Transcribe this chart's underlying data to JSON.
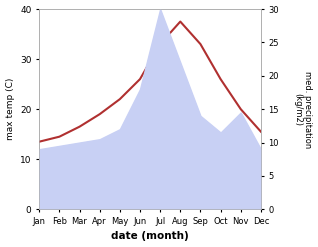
{
  "months": [
    "Jan",
    "Feb",
    "Mar",
    "Apr",
    "May",
    "Jun",
    "Jul",
    "Aug",
    "Sep",
    "Oct",
    "Nov",
    "Dec"
  ],
  "max_temp": [
    13.5,
    14.5,
    16.5,
    19.0,
    22.0,
    26.0,
    33.0,
    37.5,
    33.0,
    26.0,
    20.0,
    15.5
  ],
  "precipitation": [
    9.0,
    9.5,
    10.0,
    10.5,
    12.0,
    18.0,
    30.0,
    22.0,
    14.0,
    11.5,
    14.5,
    9.0
  ],
  "temp_color": "#b03030",
  "precip_fill_color": "#c8d0f4",
  "left_ylim": [
    0,
    40
  ],
  "right_ylim": [
    0,
    30
  ],
  "left_yticks": [
    0,
    10,
    20,
    30,
    40
  ],
  "right_yticks": [
    0,
    5,
    10,
    15,
    20,
    25,
    30
  ],
  "xlabel": "date (month)",
  "ylabel_left": "max temp (C)",
  "ylabel_right": "med. precipitation\n(kg/m2)",
  "spine_color": "#aaaaaa",
  "bg_color": "#ffffff"
}
